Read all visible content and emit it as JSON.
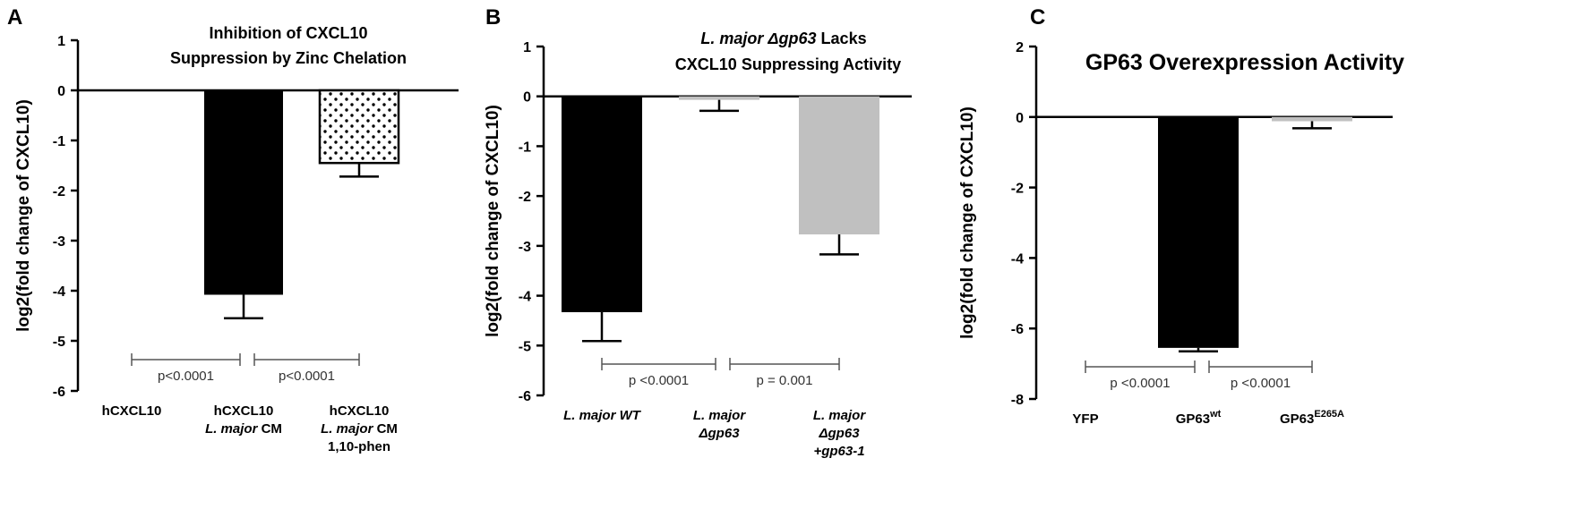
{
  "colors": {
    "black": "#000000",
    "gray": "#c0c0c0",
    "bracket": "#555555"
  },
  "chart_data": [
    {
      "type": "bar",
      "panel": "A",
      "title_lines": [
        "Inhibition of CXCL10",
        "Suppression by Zinc Chelation"
      ],
      "ylabel": "log2(fold change of CXCL10)",
      "ylim": [
        -6,
        1
      ],
      "yticks": [
        1,
        0,
        -1,
        -2,
        -3,
        -4,
        -5,
        -6
      ],
      "grid": false,
      "categories": [
        {
          "lines": [
            "hCXCL10"
          ],
          "italic": [
            false
          ]
        },
        {
          "lines": [
            "hCXCL10",
            "L. major CM"
          ],
          "italic": [
            false,
            "partial"
          ]
        },
        {
          "lines": [
            "hCXCL10",
            "L. major CM",
            "1,10-phen"
          ],
          "italic": [
            false,
            "partial",
            false
          ]
        }
      ],
      "values": [
        0,
        -4.08,
        -1.45
      ],
      "errors": [
        0,
        0.47,
        0.27
      ],
      "fills": [
        "none",
        "black",
        "dots"
      ],
      "comparisons": [
        {
          "from": 0,
          "to": 1,
          "label": "p<0.0001"
        },
        {
          "from": 1,
          "to": 2,
          "label": "p<0.0001"
        }
      ]
    },
    {
      "type": "bar",
      "panel": "B",
      "title_lines": [
        "L. major Δgp63 Lacks",
        "CXCL10 Suppressing Activity"
      ],
      "ylabel": "log2(fold change of CXCL10)",
      "ylim": [
        -6,
        1
      ],
      "yticks": [
        1,
        0,
        -1,
        -2,
        -3,
        -4,
        -5,
        -6
      ],
      "grid": false,
      "categories": [
        {
          "lines": [
            "L. major WT"
          ]
        },
        {
          "lines": [
            "L. major",
            "Δgp63"
          ]
        },
        {
          "lines": [
            "L. major",
            "Δgp63",
            "+gp63-1"
          ]
        }
      ],
      "values": [
        -4.33,
        -0.07,
        -2.77
      ],
      "errors": [
        0.58,
        0.22,
        0.4
      ],
      "fills": [
        "black",
        "gray",
        "gray"
      ],
      "comparisons": [
        {
          "from": 0,
          "to": 1,
          "label": "p <0.0001"
        },
        {
          "from": 1,
          "to": 2,
          "label": "p = 0.001"
        }
      ]
    },
    {
      "type": "bar",
      "panel": "C",
      "title_lines": [
        "GP63 Overexpression Activity"
      ],
      "ylabel": "log2(fold change of CXCL10)",
      "ylim": [
        -8,
        2
      ],
      "yticks": [
        2,
        0,
        -2,
        -4,
        -6,
        -8
      ],
      "grid": false,
      "categories": [
        {
          "base": "YFP",
          "sup": ""
        },
        {
          "base": "GP63",
          "sup": "wt"
        },
        {
          "base": "GP63",
          "sup": "E265A"
        }
      ],
      "values": [
        0,
        -6.55,
        -0.12
      ],
      "errors": [
        0,
        0.1,
        0.2
      ],
      "fills": [
        "none",
        "black",
        "gray"
      ],
      "comparisons": [
        {
          "from": 0,
          "to": 1,
          "label": "p <0.0001"
        },
        {
          "from": 1,
          "to": 2,
          "label": "p <0.0001"
        }
      ]
    }
  ]
}
